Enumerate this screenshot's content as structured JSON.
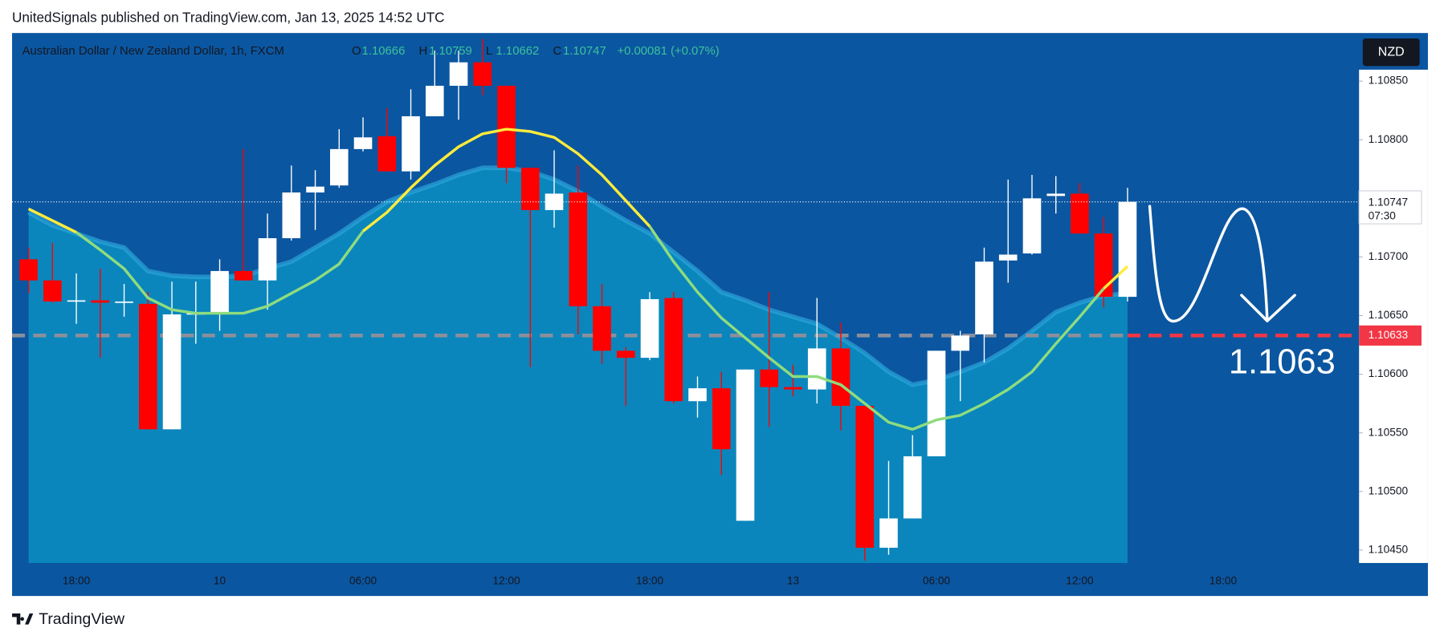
{
  "header": "UnitedSignals published on TradingView.com, Jan 13, 2025 14:52 UTC",
  "footer": "TradingView",
  "chart_data": {
    "type": "candlestick",
    "title": "Australian Dollar / New Zealand Dollar, 1h, FXCM",
    "legend": [
      {
        "label": "O",
        "value": 1.10666
      },
      {
        "label": "H",
        "value": 1.10759
      },
      {
        "label": "L",
        "value": 1.10662
      },
      {
        "label": "C",
        "value": 1.10747
      }
    ],
    "change": "+0.00081 (+0.07%)",
    "legend_color": "#3cc39a",
    "currency": "NZD",
    "categories": [
      null,
      null,
      "18:00",
      null,
      null,
      null,
      null,
      null,
      "10",
      null,
      null,
      null,
      null,
      null,
      "06:00",
      null,
      null,
      null,
      null,
      null,
      "12:00",
      null,
      null,
      null,
      null,
      null,
      "18:00",
      null,
      null,
      null,
      null,
      null,
      "13",
      null,
      null,
      null,
      null,
      null,
      "06:00",
      null,
      null,
      null,
      null,
      null,
      "12:00",
      null,
      null,
      null,
      null,
      null,
      "18:00"
    ],
    "open": [
      1.10698,
      1.1068,
      1.10662,
      1.10663,
      1.10662,
      1.1066,
      1.10553,
      1.10651,
      1.10652,
      1.10688,
      1.1068,
      1.10716,
      1.10755,
      1.10761,
      1.10792,
      1.10803,
      1.10773,
      1.1082,
      1.10846,
      1.10866,
      1.10846,
      1.10776,
      1.1074,
      1.10755,
      1.10658,
      1.1062,
      1.10614,
      1.10665,
      1.10577,
      1.10588,
      1.10475,
      1.10604,
      1.10589,
      1.10587,
      1.10622,
      1.10573,
      1.10452,
      1.10477,
      1.1053,
      1.1062,
      1.10634,
      1.10697,
      1.10703,
      1.10752,
      1.10754,
      1.1072,
      1.10666,
      null,
      null,
      null,
      null
    ],
    "high": [
      1.10708,
      1.10712,
      1.10686,
      1.1069,
      1.10677,
      1.1067,
      1.10679,
      1.10679,
      1.10698,
      1.10792,
      1.10737,
      1.10778,
      1.10774,
      1.10809,
      1.10819,
      1.10827,
      1.10843,
      1.10876,
      1.10876,
      1.10886,
      1.10846,
      1.10776,
      1.10791,
      1.10778,
      1.10677,
      1.10623,
      1.1067,
      1.1067,
      1.10598,
      1.10602,
      1.10604,
      1.1067,
      1.10608,
      1.10665,
      1.10644,
      1.10573,
      1.10526,
      1.10548,
      1.1062,
      1.10637,
      1.10708,
      1.10766,
      1.1077,
      1.10769,
      1.10763,
      1.10734,
      1.10759,
      null,
      null,
      null,
      null
    ],
    "low": [
      1.10669,
      1.10661,
      1.10643,
      1.10614,
      1.10649,
      1.10553,
      1.10553,
      1.10626,
      1.10637,
      1.1068,
      1.10655,
      1.10714,
      1.10723,
      1.10759,
      1.1079,
      1.10773,
      1.10766,
      1.1082,
      1.10817,
      1.10838,
      1.10763,
      1.10606,
      1.10725,
      1.10634,
      1.10609,
      1.10573,
      1.10612,
      1.10575,
      1.10563,
      1.10514,
      1.10475,
      1.10555,
      1.10581,
      1.10575,
      1.10552,
      1.10441,
      1.10446,
      1.10477,
      1.1053,
      1.10577,
      1.1061,
      1.10678,
      1.10702,
      1.10737,
      1.1072,
      1.10657,
      1.10662,
      null,
      null,
      null,
      null
    ],
    "close": [
      1.1068,
      1.10662,
      1.10663,
      1.10661,
      1.10662,
      1.10553,
      1.10651,
      1.10652,
      1.10688,
      1.1068,
      1.10716,
      1.10755,
      1.1076,
      1.10792,
      1.10802,
      1.10773,
      1.1082,
      1.10846,
      1.10866,
      1.10846,
      1.10776,
      1.1074,
      1.10754,
      1.10658,
      1.1062,
      1.10614,
      1.10664,
      1.10577,
      1.10588,
      1.10536,
      1.10604,
      1.10589,
      1.10587,
      1.10622,
      1.10573,
      1.10452,
      1.10477,
      1.1053,
      1.1062,
      1.10633,
      1.10696,
      1.10702,
      1.1075,
      1.10754,
      1.1072,
      1.10666,
      1.10747,
      null,
      null,
      null,
      null
    ],
    "up_color": "#ffffff",
    "down_color": "#ff0000",
    "area": {
      "color": "#0a86bc",
      "line_color": "#2ba4d8",
      "values": [
        1.10738,
        1.10727,
        1.1072,
        1.10713,
        1.10708,
        1.10688,
        1.10684,
        1.10683,
        1.10683,
        1.10684,
        1.1069,
        1.10696,
        1.10708,
        1.1072,
        1.10734,
        1.10747,
        1.10755,
        1.10762,
        1.1077,
        1.10776,
        1.10776,
        1.10773,
        1.10766,
        1.10756,
        1.10743,
        1.10731,
        1.1072,
        1.10704,
        1.10688,
        1.1067,
        1.10663,
        1.10655,
        1.10649,
        1.10643,
        1.10631,
        1.10618,
        1.10602,
        1.10591,
        1.10595,
        1.10602,
        1.1061,
        1.10622,
        1.10637,
        1.10653,
        1.10661,
        1.10667,
        1.10669,
        null,
        null,
        null,
        null
      ]
    },
    "lines": [
      {
        "color": "#ffeb3b",
        "values": [
          1.10741,
          1.10731,
          1.10721,
          null,
          null,
          null,
          null,
          null,
          null,
          null,
          null,
          null,
          null,
          null,
          1.10722,
          1.10738,
          1.10759,
          1.10778,
          1.10794,
          1.10805,
          1.10809,
          1.10807,
          1.10802,
          1.10788,
          1.1077,
          1.10748,
          1.10726,
          null,
          null,
          null,
          null,
          null,
          null,
          null,
          null,
          null,
          null,
          null,
          null,
          null,
          null,
          null,
          null,
          null,
          null,
          1.10673,
          1.10692,
          null,
          null,
          null,
          null
        ]
      },
      {
        "color": "#8fdc7e",
        "values": [
          null,
          null,
          1.10721,
          1.10706,
          1.1069,
          1.10665,
          1.10655,
          1.10652,
          1.10652,
          1.10652,
          1.10658,
          1.10669,
          1.1068,
          1.10694,
          1.10722,
          null,
          null,
          null,
          null,
          null,
          null,
          null,
          null,
          null,
          null,
          null,
          1.10726,
          1.10696,
          1.1067,
          1.10648,
          1.10631,
          1.10614,
          1.10598,
          1.10598,
          1.10591,
          1.10575,
          1.10559,
          1.10553,
          1.10561,
          1.10565,
          1.10575,
          1.10587,
          1.10602,
          1.10626,
          1.10649,
          1.10673,
          null,
          null,
          null,
          null,
          null
        ]
      }
    ],
    "xlim": [
      -0.69,
      55.69
    ],
    "ylim": [
      1.10439,
      1.10891
    ],
    "yticks": [
      {
        "value": 1.1045,
        "label": "1.10450"
      },
      {
        "value": 1.105,
        "label": "1.10500"
      },
      {
        "value": 1.1055,
        "label": "1.10550"
      },
      {
        "value": 1.106,
        "label": "1.10600"
      },
      {
        "value": 1.1065,
        "label": "1.10650"
      },
      {
        "value": 1.107,
        "label": "1.10700"
      },
      {
        "value": 1.108,
        "label": "1.10800"
      },
      {
        "value": 1.1085,
        "label": "1.10850"
      }
    ],
    "price_line": {
      "value": 1.10747,
      "countdown": "07:30"
    },
    "level": {
      "value": 1.10633,
      "color": "#f23645"
    },
    "annotation": "1.1063"
  }
}
